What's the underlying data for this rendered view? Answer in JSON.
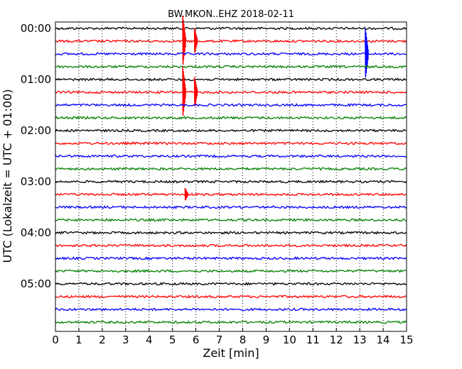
{
  "chart_data": {
    "type": "line",
    "title": "BW.MKON..EHZ 2018-02-11",
    "xlabel": "Zeit  [min]",
    "ylabel": "UTC (Lokalzeit = UTC + 01:00)",
    "xlim": [
      0,
      15
    ],
    "xticks": [
      "0",
      "1",
      "2",
      "3",
      "4",
      "5",
      "6",
      "7",
      "8",
      "9",
      "10",
      "11",
      "12",
      "13",
      "14",
      "15"
    ],
    "yticks": [
      "00:00",
      "01:00",
      "02:00",
      "03:00",
      "04:00",
      "05:00"
    ],
    "grid": "vertical dotted",
    "line_interval_min": 15,
    "colors": [
      "#000000",
      "#ff0000",
      "#0000ff",
      "#008000"
    ],
    "series": [
      {
        "start": "00:00",
        "color": "#000000"
      },
      {
        "start": "00:15",
        "color": "#ff0000",
        "events": [
          {
            "t": 5.5,
            "amp": 1.0
          },
          {
            "t": 6.0,
            "amp": 0.5
          }
        ]
      },
      {
        "start": "00:30",
        "color": "#0000ff",
        "events": [
          {
            "t": 13.3,
            "amp": 1.0
          }
        ]
      },
      {
        "start": "00:45",
        "color": "#008000"
      },
      {
        "start": "01:00",
        "color": "#000000"
      },
      {
        "start": "01:15",
        "color": "#ff0000",
        "events": [
          {
            "t": 5.5,
            "amp": 1.0
          },
          {
            "t": 6.0,
            "amp": 0.6
          }
        ]
      },
      {
        "start": "01:30",
        "color": "#0000ff"
      },
      {
        "start": "01:45",
        "color": "#008000"
      },
      {
        "start": "02:00",
        "color": "#000000"
      },
      {
        "start": "02:15",
        "color": "#ff0000"
      },
      {
        "start": "02:30",
        "color": "#0000ff"
      },
      {
        "start": "02:45",
        "color": "#008000"
      },
      {
        "start": "03:00",
        "color": "#000000"
      },
      {
        "start": "03:15",
        "color": "#ff0000",
        "events": [
          {
            "t": 5.6,
            "amp": 0.25
          }
        ]
      },
      {
        "start": "03:30",
        "color": "#0000ff"
      },
      {
        "start": "03:45",
        "color": "#008000"
      },
      {
        "start": "04:00",
        "color": "#000000"
      },
      {
        "start": "04:15",
        "color": "#ff0000"
      },
      {
        "start": "04:30",
        "color": "#0000ff"
      },
      {
        "start": "04:45",
        "color": "#008000"
      },
      {
        "start": "05:00",
        "color": "#000000"
      },
      {
        "start": "05:15",
        "color": "#ff0000"
      },
      {
        "start": "05:30",
        "color": "#0000ff"
      },
      {
        "start": "05:45",
        "color": "#008000"
      }
    ]
  }
}
